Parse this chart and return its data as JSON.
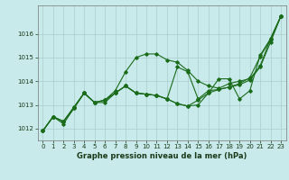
{
  "background_color": "#c8eaea",
  "grid_color": "#aacccc",
  "line_color": "#1a6b1a",
  "xlabel": "Graphe pression niveau de la mer (hPa)",
  "ylim": [
    1011.5,
    1017.2
  ],
  "xlim": [
    -0.5,
    23.5
  ],
  "yticks": [
    1012,
    1013,
    1014,
    1015,
    1016
  ],
  "xticks": [
    0,
    1,
    2,
    3,
    4,
    5,
    6,
    7,
    8,
    9,
    10,
    11,
    12,
    13,
    14,
    15,
    16,
    17,
    18,
    19,
    20,
    21,
    22,
    23
  ],
  "series": [
    [
      1011.9,
      1012.5,
      1012.3,
      1012.9,
      1013.5,
      1013.1,
      1013.2,
      1013.6,
      1014.4,
      1015.0,
      1015.15,
      1015.15,
      1014.9,
      1014.8,
      1014.45,
      1014.0,
      1013.8,
      1013.7,
      1013.9,
      1014.0,
      1014.1,
      1014.65,
      1015.8,
      1016.75
    ],
    [
      1011.9,
      1012.5,
      1012.3,
      1012.9,
      1013.5,
      1013.1,
      1013.2,
      1013.5,
      1013.8,
      1013.5,
      1013.45,
      1013.4,
      1013.25,
      1013.05,
      1012.95,
      1013.2,
      1013.5,
      1014.1,
      1014.1,
      1013.25,
      1013.6,
      1015.1,
      1015.8,
      1016.75
    ],
    [
      1011.9,
      1012.5,
      1012.3,
      1012.85,
      1013.5,
      1013.1,
      1013.2,
      1013.5,
      1013.8,
      1013.5,
      1013.45,
      1013.4,
      1013.25,
      1013.05,
      1012.95,
      1013.0,
      1013.5,
      1013.65,
      1013.75,
      1013.85,
      1014.05,
      1014.6,
      1015.65,
      1016.75
    ],
    [
      1011.9,
      1012.5,
      1012.2,
      1012.85,
      1013.5,
      1013.1,
      1013.1,
      1013.5,
      1013.8,
      1013.5,
      1013.45,
      1013.4,
      1013.25,
      1014.6,
      1014.4,
      1013.25,
      1013.6,
      1013.65,
      1013.75,
      1013.9,
      1014.15,
      1015.05,
      1015.75,
      1016.75
    ]
  ]
}
